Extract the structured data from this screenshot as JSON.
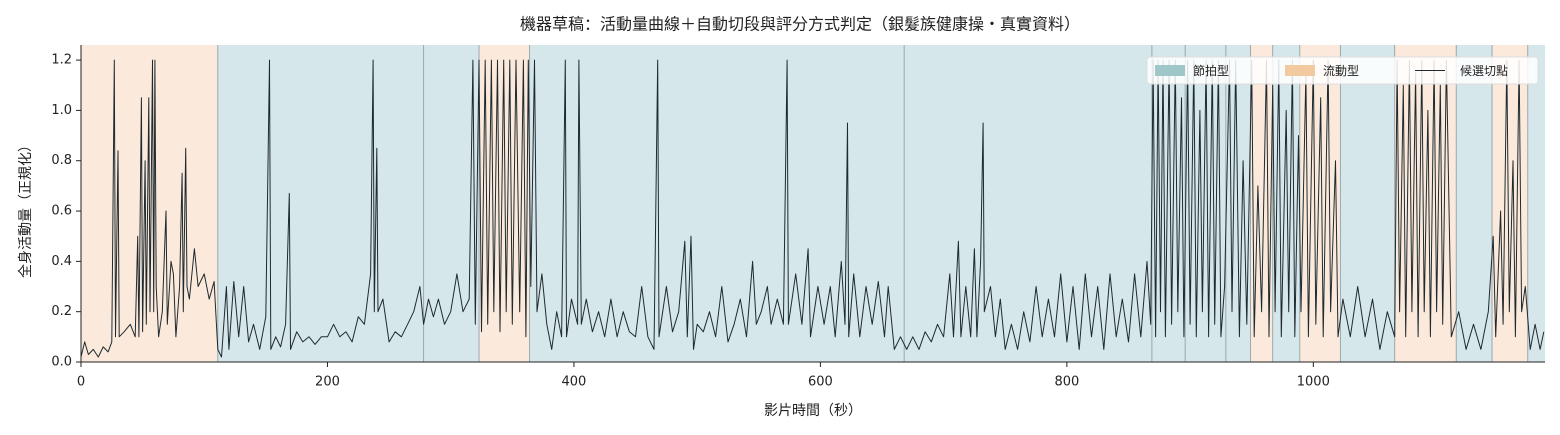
{
  "chart_data": {
    "type": "line",
    "title": "機器草稿：活動量曲線＋自動切段與評分方式判定（銀髮族健康操・真實資料）",
    "x_label": "影片時間（秒）",
    "y_label": "全身活動量（正規化）",
    "xlim": [
      0,
      1188
    ],
    "ylim": [
      0,
      1.26
    ],
    "xticks": [
      0,
      200,
      400,
      600,
      800,
      1000
    ],
    "yticks": [
      {
        "value": 0,
        "label": "0.0"
      },
      0.2,
      0.4,
      0.6,
      0.8,
      {
        "value": 1,
        "label": "1.0"
      },
      1.2
    ],
    "line_color": "#1f2a30",
    "legend_position": "upper right",
    "kinds": [
      {
        "name": "節拍型",
        "color": "#d5e7eb",
        "swatch": "#9fc6c9"
      },
      {
        "name": "流動型",
        "color": "#fbeadb",
        "swatch": "#f3c9a0"
      }
    ],
    "cut_label": "候選切點",
    "cut_color": "#9aa9ad",
    "segments": [
      {
        "start": 0,
        "end": 111,
        "kind": 1
      },
      {
        "start": 111,
        "end": 278,
        "kind": 0
      },
      {
        "start": 278,
        "end": 323,
        "kind": 0
      },
      {
        "start": 323,
        "end": 364,
        "kind": 1
      },
      {
        "start": 364,
        "end": 668,
        "kind": 0
      },
      {
        "start": 668,
        "end": 869,
        "kind": 0
      },
      {
        "start": 869,
        "end": 896,
        "kind": 0
      },
      {
        "start": 896,
        "end": 929,
        "kind": 0
      },
      {
        "start": 929,
        "end": 949,
        "kind": 0
      },
      {
        "start": 949,
        "end": 967,
        "kind": 1
      },
      {
        "start": 967,
        "end": 989,
        "kind": 0
      },
      {
        "start": 989,
        "end": 1022,
        "kind": 1
      },
      {
        "start": 1022,
        "end": 1066,
        "kind": 0
      },
      {
        "start": 1066,
        "end": 1116,
        "kind": 1
      },
      {
        "start": 1116,
        "end": 1145,
        "kind": 0
      },
      {
        "start": 1145,
        "end": 1174,
        "kind": 1
      },
      {
        "start": 1174,
        "end": 1188,
        "kind": 0
      }
    ],
    "cuts": [
      111,
      278,
      323,
      364,
      668,
      869,
      896,
      929,
      949,
      967,
      989,
      1022,
      1066,
      1116,
      1145,
      1174
    ],
    "x": [
      0,
      3,
      6,
      10,
      14,
      18,
      22,
      25,
      27,
      28,
      30,
      31,
      35,
      40,
      44,
      46,
      47,
      49,
      50,
      52,
      53,
      55,
      56,
      58,
      59,
      60,
      61,
      63,
      66,
      69,
      70,
      73,
      75,
      77,
      80,
      82,
      83,
      85,
      86,
      88,
      92,
      95,
      100,
      104,
      108,
      111,
      114,
      118,
      120,
      124,
      128,
      132,
      136,
      140,
      145,
      150,
      153,
      154,
      158,
      162,
      166,
      169,
      170,
      175,
      180,
      185,
      190,
      195,
      200,
      205,
      210,
      215,
      220,
      225,
      230,
      235,
      237,
      238,
      240,
      241,
      245,
      250,
      255,
      260,
      265,
      270,
      275,
      278,
      282,
      286,
      290,
      295,
      300,
      305,
      310,
      315,
      318,
      320,
      323,
      325,
      328,
      330,
      333,
      335,
      338,
      340,
      343,
      345,
      348,
      350,
      353,
      356,
      359,
      361,
      363,
      365,
      368,
      370,
      374,
      378,
      382,
      386,
      390,
      393,
      394,
      398,
      403,
      404,
      406,
      410,
      415,
      420,
      425,
      430,
      435,
      440,
      445,
      450,
      455,
      460,
      465,
      468,
      469,
      475,
      480,
      485,
      490,
      492,
      495,
      497,
      500,
      505,
      510,
      515,
      520,
      525,
      530,
      535,
      540,
      545,
      548,
      552,
      557,
      560,
      565,
      570,
      573,
      574,
      580,
      585,
      590,
      592,
      598,
      603,
      608,
      612,
      617,
      620,
      622,
      623,
      627,
      632,
      637,
      642,
      647,
      652,
      655,
      660,
      665,
      670,
      675,
      680,
      685,
      690,
      695,
      700,
      705,
      708,
      712,
      714,
      718,
      722,
      725,
      727,
      730,
      732,
      733,
      738,
      742,
      746,
      750,
      755,
      760,
      765,
      770,
      775,
      780,
      785,
      790,
      795,
      800,
      805,
      810,
      815,
      820,
      825,
      830,
      835,
      840,
      845,
      850,
      855,
      860,
      865,
      868,
      870,
      872,
      874,
      876,
      878,
      880,
      883,
      885,
      888,
      890,
      893,
      895,
      898,
      900,
      903,
      905,
      908,
      910,
      913,
      915,
      918,
      920,
      923,
      925,
      928,
      932,
      934,
      937,
      940,
      943,
      946,
      950,
      952,
      955,
      958,
      962,
      964,
      967,
      969,
      972,
      974,
      978,
      980,
      983,
      985,
      988,
      990,
      994,
      996,
      1000,
      1002,
      1006,
      1008,
      1012,
      1014,
      1018,
      1020,
      1024,
      1030,
      1036,
      1042,
      1048,
      1054,
      1060,
      1066,
      1068,
      1070,
      1073,
      1075,
      1078,
      1080,
      1083,
      1085,
      1088,
      1090,
      1093,
      1095,
      1098,
      1100,
      1103,
      1105,
      1108,
      1112,
      1118,
      1124,
      1130,
      1136,
      1142,
      1146,
      1148,
      1152,
      1154,
      1157,
      1159,
      1162,
      1164,
      1167,
      1169,
      1172,
      1176,
      1180,
      1184,
      1187
    ],
    "values": [
      0.02,
      0.08,
      0.03,
      0.05,
      0.02,
      0.06,
      0.04,
      0.08,
      1.2,
      0.1,
      0.84,
      0.1,
      0.12,
      0.15,
      0.1,
      0.5,
      0.1,
      1.05,
      0.12,
      0.8,
      0.15,
      1.05,
      0.2,
      1.2,
      0.2,
      1.2,
      0.3,
      0.1,
      0.2,
      0.6,
      0.15,
      0.4,
      0.35,
      0.1,
      0.3,
      0.75,
      0.2,
      0.85,
      0.3,
      0.25,
      0.45,
      0.3,
      0.35,
      0.25,
      0.32,
      0.05,
      0.02,
      0.3,
      0.05,
      0.32,
      0.1,
      0.3,
      0.08,
      0.15,
      0.05,
      0.18,
      1.2,
      0.05,
      0.1,
      0.06,
      0.15,
      0.67,
      0.05,
      0.12,
      0.08,
      0.1,
      0.07,
      0.1,
      0.1,
      0.15,
      0.1,
      0.12,
      0.08,
      0.18,
      0.15,
      0.35,
      1.2,
      0.2,
      0.85,
      0.2,
      0.25,
      0.08,
      0.12,
      0.1,
      0.15,
      0.2,
      0.3,
      0.15,
      0.25,
      0.18,
      0.25,
      0.15,
      0.2,
      0.35,
      0.2,
      0.25,
      1.2,
      0.15,
      1.2,
      0.12,
      1.2,
      0.15,
      1.2,
      0.2,
      1.2,
      0.12,
      1.2,
      0.2,
      1.2,
      0.15,
      1.2,
      0.2,
      1.2,
      0.1,
      1.2,
      0.3,
      1.2,
      0.2,
      0.35,
      0.15,
      0.05,
      0.2,
      0.1,
      1.2,
      0.1,
      0.25,
      0.15,
      1.2,
      0.15,
      0.25,
      0.12,
      0.2,
      0.1,
      0.25,
      0.1,
      0.2,
      0.12,
      0.1,
      0.3,
      0.1,
      0.05,
      1.2,
      0.1,
      0.3,
      0.12,
      0.2,
      0.48,
      0.1,
      0.5,
      0.05,
      0.15,
      0.12,
      0.2,
      0.1,
      0.3,
      0.08,
      0.15,
      0.25,
      0.1,
      0.4,
      0.15,
      0.2,
      0.3,
      0.15,
      0.25,
      0.15,
      1.2,
      0.15,
      0.35,
      0.15,
      0.45,
      0.1,
      0.3,
      0.15,
      0.3,
      0.1,
      0.4,
      0.15,
      0.95,
      0.1,
      0.35,
      0.1,
      0.3,
      0.15,
      0.32,
      0.1,
      0.3,
      0.05,
      0.1,
      0.05,
      0.1,
      0.05,
      0.12,
      0.08,
      0.15,
      0.1,
      0.35,
      0.1,
      0.48,
      0.1,
      0.3,
      0.1,
      0.45,
      0.1,
      0.4,
      0.95,
      0.2,
      0.3,
      0.1,
      0.25,
      0.05,
      0.15,
      0.05,
      0.2,
      0.08,
      0.3,
      0.1,
      0.25,
      0.1,
      0.35,
      0.08,
      0.3,
      0.05,
      0.35,
      0.1,
      0.3,
      0.05,
      0.35,
      0.1,
      0.25,
      0.08,
      0.35,
      0.1,
      0.4,
      0.15,
      1.2,
      0.1,
      1.2,
      0.2,
      1.2,
      0.1,
      1.2,
      0.15,
      1.2,
      0.2,
      1.05,
      0.1,
      1.2,
      0.15,
      1.2,
      0.1,
      1.0,
      0.2,
      1.2,
      0.1,
      1.2,
      0.15,
      1.2,
      0.1,
      0.3,
      1.2,
      0.2,
      1.2,
      0.1,
      0.8,
      0.15,
      1.2,
      0.1,
      0.7,
      0.2,
      1.2,
      0.1,
      1.1,
      0.2,
      1.2,
      0.1,
      1.0,
      0.2,
      1.2,
      0.1,
      0.9,
      0.2,
      1.15,
      0.1,
      1.2,
      0.15,
      1.05,
      0.1,
      1.2,
      0.2,
      0.8,
      0.1,
      0.25,
      0.1,
      0.3,
      0.1,
      0.25,
      0.05,
      0.2,
      0.1,
      1.2,
      0.2,
      1.1,
      0.1,
      1.2,
      0.2,
      1.15,
      0.1,
      1.2,
      0.2,
      1.0,
      0.1,
      1.2,
      0.2,
      1.1,
      0.15,
      1.2,
      0.1,
      0.2,
      0.05,
      0.15,
      0.05,
      0.2,
      0.5,
      0.1,
      0.6,
      0.15,
      1.2,
      0.2,
      0.8,
      0.1,
      1.2,
      0.2,
      0.3,
      0.05,
      0.15,
      0.05,
      0.12
    ]
  }
}
